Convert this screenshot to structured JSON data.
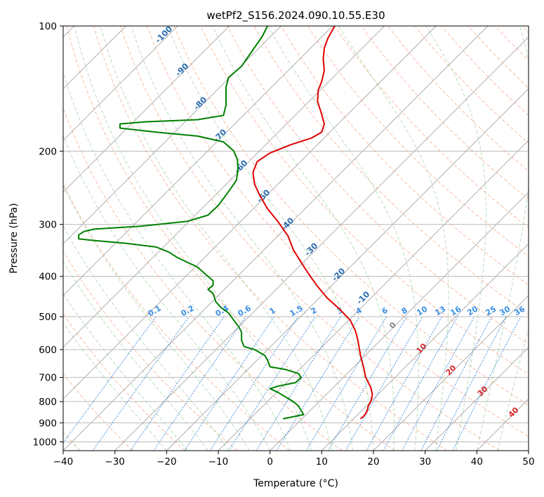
{
  "chart_data": {
    "type": "line",
    "title": "wetPf2_S156.2024.090.10.55.E30",
    "xlabel": "Temperature (°C)",
    "ylabel": "Pressure (hPa)",
    "x_ticks": [
      -40,
      -30,
      -20,
      -10,
      0,
      10,
      20,
      30,
      40,
      50
    ],
    "y_ticks": [
      100,
      200,
      300,
      400,
      500,
      600,
      700,
      800,
      900,
      1000
    ],
    "xlim": [
      -40,
      50
    ],
    "ylim": [
      1050,
      100
    ],
    "y_scale": "log",
    "isobar_grid": [
      200,
      300,
      400,
      500,
      600,
      700,
      800,
      900,
      1000
    ],
    "skew_label_values": [
      "-100",
      "-90",
      "-80",
      "-70",
      "-60",
      "-50",
      "-40",
      "-30",
      "-20",
      "-10"
    ],
    "mixing_ratio_labels": [
      "0.1",
      "0.2",
      "0.4",
      "0.6",
      "1",
      "1.5",
      "2",
      "3",
      "4",
      "6",
      "8",
      "10",
      "13",
      "16",
      "20",
      "25",
      "30",
      "36"
    ],
    "moist_adiabat_labels": [
      "0",
      "10",
      "20",
      "30",
      "40"
    ],
    "series": [
      {
        "color": "#e00000",
        "points": [
          [
            17.5,
            880
          ],
          [
            18,
            870
          ],
          [
            18.5,
            855
          ],
          [
            18.8,
            840
          ],
          [
            19,
            820
          ],
          [
            19.5,
            800
          ],
          [
            19.8,
            770
          ],
          [
            19.5,
            740
          ],
          [
            18.5,
            700
          ],
          [
            18.2,
            670
          ],
          [
            17.8,
            640
          ],
          [
            17.5,
            620
          ],
          [
            17.3,
            600
          ],
          [
            17,
            570
          ],
          [
            16.5,
            540
          ],
          [
            15.5,
            510
          ],
          [
            13.5,
            480
          ],
          [
            11,
            450
          ],
          [
            9,
            420
          ],
          [
            7.5,
            395
          ],
          [
            6,
            370
          ],
          [
            4.5,
            345
          ],
          [
            3.5,
            320
          ],
          [
            1.5,
            295
          ],
          [
            -0.5,
            275
          ],
          [
            -2,
            255
          ],
          [
            -3,
            240
          ],
          [
            -3.3,
            225
          ],
          [
            -2.5,
            212
          ],
          [
            0,
            202
          ],
          [
            4,
            193
          ],
          [
            8,
            186
          ],
          [
            10,
            180
          ],
          [
            10.5,
            172
          ],
          [
            10,
            163
          ],
          [
            9.2,
            152
          ],
          [
            9.3,
            143
          ],
          [
            10,
            136
          ],
          [
            10.5,
            128
          ],
          [
            10.3,
            120
          ],
          [
            10.5,
            113
          ],
          [
            11.2,
            107
          ],
          [
            12.5,
            100
          ]
        ]
      },
      {
        "color": "#008000",
        "points": [
          [
            2.5,
            880
          ],
          [
            4.5,
            870
          ],
          [
            6.5,
            860
          ],
          [
            6,
            840
          ],
          [
            5.5,
            820
          ],
          [
            4.5,
            800
          ],
          [
            3,
            780
          ],
          [
            1.5,
            760
          ],
          [
            0,
            745
          ],
          [
            1.5,
            735
          ],
          [
            5,
            720
          ],
          [
            6,
            700
          ],
          [
            5.5,
            685
          ],
          [
            3,
            670
          ],
          [
            0,
            660
          ],
          [
            -0.5,
            635
          ],
          [
            -1,
            620
          ],
          [
            -3,
            600
          ],
          [
            -5,
            590
          ],
          [
            -5.5,
            570
          ],
          [
            -5.5,
            545
          ],
          [
            -6,
            530
          ],
          [
            -7,
            510
          ],
          [
            -8,
            490
          ],
          [
            -9.5,
            475
          ],
          [
            -10.5,
            460
          ],
          [
            -11,
            440
          ],
          [
            -12,
            430
          ],
          [
            -11,
            420
          ],
          [
            -11,
            410
          ],
          [
            -12.5,
            395
          ],
          [
            -14,
            380
          ],
          [
            -16,
            370
          ],
          [
            -18,
            360
          ],
          [
            -19.5,
            350
          ],
          [
            -22,
            340
          ],
          [
            -28,
            333
          ],
          [
            -34,
            328
          ],
          [
            -37,
            325
          ],
          [
            -37,
            318
          ],
          [
            -36,
            312
          ],
          [
            -34,
            308
          ],
          [
            -25,
            303
          ],
          [
            -16,
            295
          ],
          [
            -12,
            285
          ],
          [
            -10,
            270
          ],
          [
            -8.5,
            255
          ],
          [
            -7.5,
            245
          ],
          [
            -6.5,
            235
          ],
          [
            -6.2,
            222
          ],
          [
            -6.3,
            210
          ],
          [
            -7,
            200
          ],
          [
            -9,
            190
          ],
          [
            -14,
            184
          ],
          [
            -22,
            180
          ],
          [
            -29,
            176
          ],
          [
            -29,
            172
          ],
          [
            -24,
            170
          ],
          [
            -14,
            168
          ],
          [
            -9,
            164
          ],
          [
            -8.5,
            155
          ],
          [
            -8.5,
            140
          ],
          [
            -8,
            133
          ],
          [
            -5.5,
            125
          ],
          [
            -3.5,
            115
          ],
          [
            -1.5,
            106
          ],
          [
            -0.5,
            100
          ]
        ]
      }
    ]
  }
}
